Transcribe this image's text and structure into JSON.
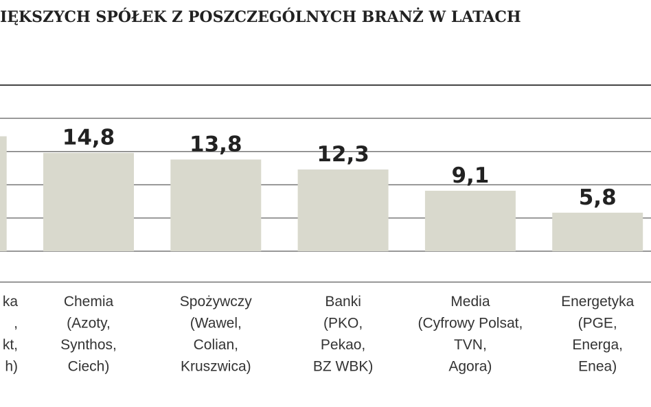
{
  "chart_data": {
    "type": "bar",
    "title": "IĘKSZYCH SPÓŁEK Z POSZCZEGÓLNYCH BRANŻ W LATACH",
    "categories": [
      [
        "ka",
        ",",
        "kt,",
        "h)"
      ],
      [
        "Chemia",
        "(Azoty,",
        "Synthos,",
        "Ciech)"
      ],
      [
        "Spożywczy",
        "(Wawel,",
        "Colian,",
        "Kruszwica)"
      ],
      [
        "Banki",
        "(PKO,",
        "Pekao,",
        "BZ WBK)"
      ],
      [
        "Media",
        "(Cyfrowy Polsat,",
        "TVN,",
        "Agora)"
      ],
      [
        "Energetyka",
        "(PGE,",
        "Energa,",
        "Enea)"
      ]
    ],
    "values": [
      17.3,
      14.8,
      13.8,
      12.3,
      9.1,
      5.8
    ],
    "value_labels": [
      null,
      "14,8",
      "13,8",
      "12,3",
      "9,1",
      "5,8"
    ],
    "color": "#d9d9cd",
    "ylim": [
      0,
      25
    ],
    "yticks": [
      0,
      5,
      10,
      15,
      20,
      25
    ],
    "grid": true
  }
}
